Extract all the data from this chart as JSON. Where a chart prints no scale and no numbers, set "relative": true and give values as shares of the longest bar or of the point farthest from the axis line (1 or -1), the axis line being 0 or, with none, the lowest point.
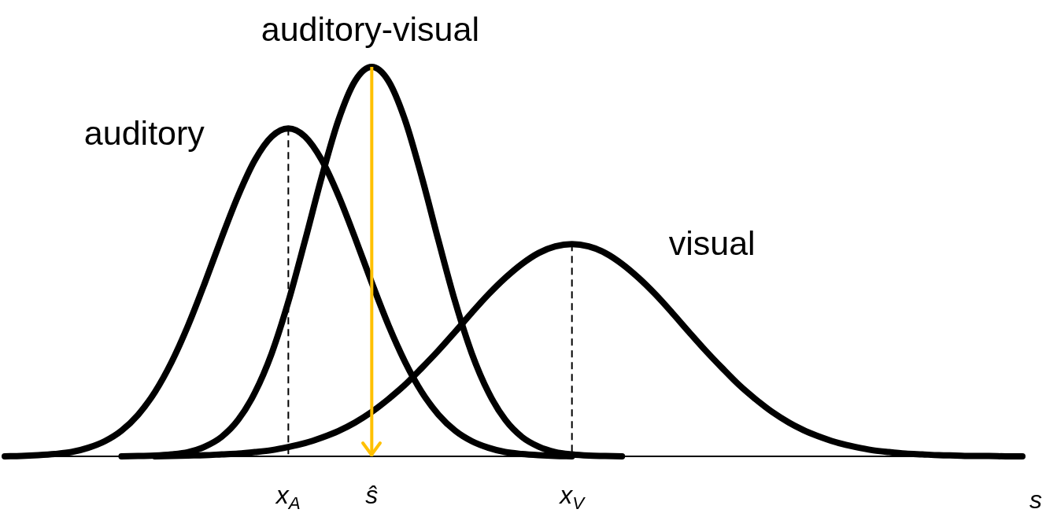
{
  "chart_data": {
    "type": "line",
    "relative": true,
    "marker": "none",
    "line_style": "solid",
    "grid": false,
    "xlabel": "s",
    "categories": [
      null,
      null,
      null,
      null,
      null,
      null,
      null,
      null,
      null,
      null,
      null,
      null,
      null,
      null,
      null,
      null,
      null,
      "x$_{A}$",
      null,
      null,
      null,
      null,
      "ŝ",
      null,
      null,
      null,
      null,
      null,
      null,
      null,
      null,
      null,
      null,
      null,
      "x$_{V}$",
      null,
      null,
      null,
      null,
      null,
      null,
      null,
      null,
      null,
      null,
      null,
      null,
      null,
      null,
      null,
      null,
      null,
      null,
      null,
      null,
      null,
      null,
      null,
      null,
      null,
      null,
      null
    ],
    "series": [
      {
        "name": "auditory",
        "color": "#000000",
        "values": [
          0,
          0.001,
          0.003,
          0.006,
          0.011,
          0.022,
          0.039,
          0.066,
          0.107,
          0.165,
          0.242,
          0.337,
          0.446,
          0.561,
          0.67,
          0.761,
          0.821,
          0.842,
          0.821,
          0.761,
          0.67,
          0.561,
          0.446,
          0.337,
          0.242,
          0.165,
          0.107,
          0.066,
          0.039,
          0.022,
          0.011,
          0.006,
          0.003,
          0.001,
          0,
          null,
          null,
          null,
          null,
          null,
          null,
          null,
          null,
          null,
          null,
          null,
          null,
          null,
          null,
          null,
          null,
          null,
          null,
          null,
          null,
          null,
          null,
          null,
          null,
          null,
          null,
          null
        ]
      },
      {
        "name": "auditory-visual",
        "color": "#000000",
        "values": [
          null,
          null,
          null,
          null,
          null,
          null,
          null,
          0,
          0.001,
          0.002,
          0.005,
          0.011,
          0.025,
          0.05,
          0.094,
          0.164,
          0.264,
          0.397,
          0.554,
          0.717,
          0.863,
          0.964,
          1,
          0.964,
          0.863,
          0.717,
          0.554,
          0.397,
          0.264,
          0.164,
          0.094,
          0.05,
          0.025,
          0.011,
          0.005,
          0.002,
          0.001,
          0,
          null,
          null,
          null,
          null,
          null,
          null,
          null,
          null,
          null,
          null,
          null,
          null,
          null,
          null,
          null,
          null,
          null,
          null,
          null,
          null,
          null,
          null,
          null,
          null
        ]
      },
      {
        "name": "visual",
        "color": "#000000",
        "values": [
          null,
          null,
          null,
          null,
          null,
          null,
          null,
          null,
          null,
          0,
          0.001,
          0.002,
          0.003,
          0.005,
          0.007,
          0.011,
          0.016,
          0.024,
          0.034,
          0.048,
          0.065,
          0.087,
          0.114,
          0.147,
          0.184,
          0.227,
          0.272,
          0.32,
          0.369,
          0.416,
          0.458,
          0.494,
          0.522,
          0.539,
          0.545,
          0.539,
          0.522,
          0.494,
          0.458,
          0.416,
          0.369,
          0.32,
          0.272,
          0.227,
          0.184,
          0.147,
          0.114,
          0.087,
          0.065,
          0.048,
          0.034,
          0.024,
          0.016,
          0.011,
          0.007,
          0.005,
          0.003,
          0.002,
          0.001,
          0.001,
          0,
          0
        ]
      }
    ],
    "ref_lines": [
      {
        "axis": "x",
        "value": "x$_{A}$",
        "color": "#000000",
        "line_style": "dashed"
      },
      {
        "axis": "x",
        "value": "x$_{V}$",
        "color": "#000000",
        "line_style": "dashed"
      },
      {
        "axis": "x",
        "value": "ŝ",
        "color": "#ffc000",
        "line_style": "solid"
      }
    ]
  }
}
